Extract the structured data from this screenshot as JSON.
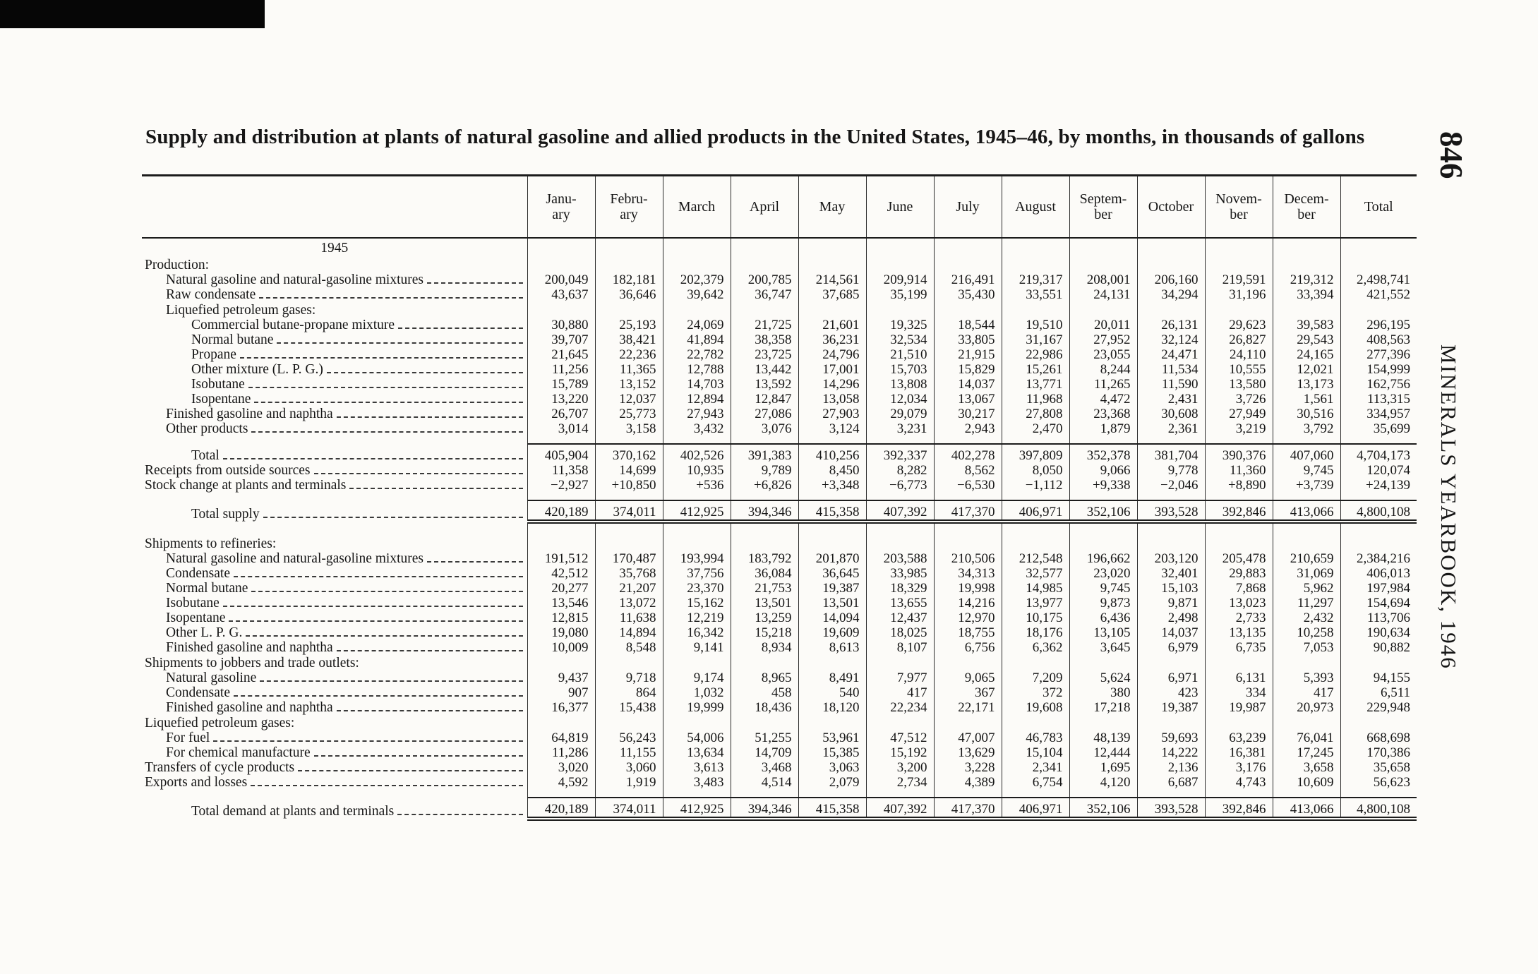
{
  "page": {
    "title": "Supply and distribution at plants of natural gasoline and allied products in the United States, 1945–46, by months, in thousands of gallons",
    "page_number": "846",
    "side_text": "MINERALS YEARBOOK, 1946"
  },
  "table": {
    "columns": [
      "Janu-\nary",
      "Febru-\nary",
      "March",
      "April",
      "May",
      "June",
      "July",
      "August",
      "Septem-\nber",
      "October",
      "Novem-\nber",
      "Decem-\nber",
      "Total"
    ],
    "rows": [
      {
        "type": "year",
        "label": "1945"
      },
      {
        "type": "section",
        "label": "Production:",
        "indent": 0
      },
      {
        "type": "data",
        "label": "Natural gasoline and natural-gasoline mixtures",
        "indent": 1,
        "values": [
          "200,049",
          "182,181",
          "202,379",
          "200,785",
          "214,561",
          "209,914",
          "216,491",
          "219,317",
          "208,001",
          "206,160",
          "219,591",
          "219,312",
          "2,498,741"
        ]
      },
      {
        "type": "data",
        "label": "Raw condensate",
        "indent": 1,
        "values": [
          "43,637",
          "36,646",
          "39,642",
          "36,747",
          "37,685",
          "35,199",
          "35,430",
          "33,551",
          "24,131",
          "34,294",
          "31,196",
          "33,394",
          "421,552"
        ]
      },
      {
        "type": "section",
        "label": "Liquefied petroleum gases:",
        "indent": 1
      },
      {
        "type": "data",
        "label": "Commercial butane-propane mixture",
        "indent": 2,
        "values": [
          "30,880",
          "25,193",
          "24,069",
          "21,725",
          "21,601",
          "19,325",
          "18,544",
          "19,510",
          "20,011",
          "26,131",
          "29,623",
          "39,583",
          "296,195"
        ]
      },
      {
        "type": "data",
        "label": "Normal butane",
        "indent": 2,
        "values": [
          "39,707",
          "38,421",
          "41,894",
          "38,358",
          "36,231",
          "32,534",
          "33,805",
          "31,167",
          "27,952",
          "32,124",
          "26,827",
          "29,543",
          "408,563"
        ]
      },
      {
        "type": "data",
        "label": "Propane",
        "indent": 2,
        "values": [
          "21,645",
          "22,236",
          "22,782",
          "23,725",
          "24,796",
          "21,510",
          "21,915",
          "22,986",
          "23,055",
          "24,471",
          "24,110",
          "24,165",
          "277,396"
        ]
      },
      {
        "type": "data",
        "label": "Other mixture (L. P. G.)",
        "indent": 2,
        "values": [
          "11,256",
          "11,365",
          "12,788",
          "13,442",
          "17,001",
          "15,703",
          "15,829",
          "15,261",
          "8,244",
          "11,534",
          "10,555",
          "12,021",
          "154,999"
        ]
      },
      {
        "type": "data",
        "label": "Isobutane",
        "indent": 2,
        "values": [
          "15,789",
          "13,152",
          "14,703",
          "13,592",
          "14,296",
          "13,808",
          "14,037",
          "13,771",
          "11,265",
          "11,590",
          "13,580",
          "13,173",
          "162,756"
        ]
      },
      {
        "type": "data",
        "label": "Isopentane",
        "indent": 2,
        "values": [
          "13,220",
          "12,037",
          "12,894",
          "12,847",
          "13,058",
          "12,034",
          "13,067",
          "11,968",
          "4,472",
          "2,431",
          "3,726",
          "1,561",
          "113,315"
        ]
      },
      {
        "type": "data",
        "label": "Finished gasoline and naphtha",
        "indent": 1,
        "values": [
          "26,707",
          "25,773",
          "27,943",
          "27,086",
          "27,903",
          "29,079",
          "30,217",
          "27,808",
          "23,368",
          "30,608",
          "27,949",
          "30,516",
          "334,957"
        ]
      },
      {
        "type": "data",
        "label": "Other products",
        "indent": 1,
        "values": [
          "3,014",
          "3,158",
          "3,432",
          "3,076",
          "3,124",
          "3,231",
          "2,943",
          "2,470",
          "1,879",
          "2,361",
          "3,219",
          "3,792",
          "35,699"
        ]
      },
      {
        "type": "spacer"
      },
      {
        "type": "total",
        "label": "Total",
        "indent": 2,
        "values": [
          "405,904",
          "370,162",
          "402,526",
          "391,383",
          "410,256",
          "392,337",
          "402,278",
          "397,809",
          "352,378",
          "381,704",
          "390,376",
          "407,060",
          "4,704,173"
        ]
      },
      {
        "type": "data",
        "label": "Receipts from outside sources",
        "indent": 0,
        "values": [
          "11,358",
          "14,699",
          "10,935",
          "9,789",
          "8,450",
          "8,282",
          "8,562",
          "8,050",
          "9,066",
          "9,778",
          "11,360",
          "9,745",
          "120,074"
        ]
      },
      {
        "type": "data",
        "label": "Stock change at plants and terminals",
        "indent": 0,
        "values": [
          "−2,927",
          "+10,850",
          "+536",
          "+6,826",
          "+3,348",
          "−6,773",
          "−6,530",
          "−1,112",
          "+9,338",
          "−2,046",
          "+8,890",
          "+3,739",
          "+24,139"
        ]
      },
      {
        "type": "spacer"
      },
      {
        "type": "grand",
        "label": "Total supply",
        "indent": 2,
        "values": [
          "420,189",
          "374,011",
          "412,925",
          "394,346",
          "415,358",
          "407,392",
          "417,370",
          "406,971",
          "352,106",
          "393,528",
          "392,846",
          "413,066",
          "4,800,108"
        ]
      },
      {
        "type": "spacer",
        "tall": true
      },
      {
        "type": "section",
        "label": "Shipments to refineries:",
        "indent": 0
      },
      {
        "type": "data",
        "label": "Natural gasoline and natural-gasoline mixtures",
        "indent": 1,
        "values": [
          "191,512",
          "170,487",
          "193,994",
          "183,792",
          "201,870",
          "203,588",
          "210,506",
          "212,548",
          "196,662",
          "203,120",
          "205,478",
          "210,659",
          "2,384,216"
        ]
      },
      {
        "type": "data",
        "label": "Condensate",
        "indent": 1,
        "values": [
          "42,512",
          "35,768",
          "37,756",
          "36,084",
          "36,645",
          "33,985",
          "34,313",
          "32,577",
          "23,020",
          "32,401",
          "29,883",
          "31,069",
          "406,013"
        ]
      },
      {
        "type": "data",
        "label": "Normal butane",
        "indent": 1,
        "values": [
          "20,277",
          "21,207",
          "23,370",
          "21,753",
          "19,387",
          "18,329",
          "19,998",
          "14,985",
          "9,745",
          "15,103",
          "7,868",
          "5,962",
          "197,984"
        ]
      },
      {
        "type": "data",
        "label": "Isobutane",
        "indent": 1,
        "values": [
          "13,546",
          "13,072",
          "15,162",
          "13,501",
          "13,501",
          "13,655",
          "14,216",
          "13,977",
          "9,873",
          "9,871",
          "13,023",
          "11,297",
          "154,694"
        ]
      },
      {
        "type": "data",
        "label": "Isopentane",
        "indent": 1,
        "values": [
          "12,815",
          "11,638",
          "12,219",
          "13,259",
          "14,094",
          "12,437",
          "12,970",
          "10,175",
          "6,436",
          "2,498",
          "2,733",
          "2,432",
          "113,706"
        ]
      },
      {
        "type": "data",
        "label": "Other L. P. G.",
        "indent": 1,
        "values": [
          "19,080",
          "14,894",
          "16,342",
          "15,218",
          "19,609",
          "18,025",
          "18,755",
          "18,176",
          "13,105",
          "14,037",
          "13,135",
          "10,258",
          "190,634"
        ]
      },
      {
        "type": "data",
        "label": "Finished gasoline and naphtha",
        "indent": 1,
        "values": [
          "10,009",
          "8,548",
          "9,141",
          "8,934",
          "8,613",
          "8,107",
          "6,756",
          "6,362",
          "3,645",
          "6,979",
          "6,735",
          "7,053",
          "90,882"
        ]
      },
      {
        "type": "section",
        "label": "Shipments to jobbers and trade outlets:",
        "indent": 0
      },
      {
        "type": "data",
        "label": "Natural gasoline",
        "indent": 1,
        "values": [
          "9,437",
          "9,718",
          "9,174",
          "8,965",
          "8,491",
          "7,977",
          "9,065",
          "7,209",
          "5,624",
          "6,971",
          "6,131",
          "5,393",
          "94,155"
        ]
      },
      {
        "type": "data",
        "label": "Condensate",
        "indent": 1,
        "values": [
          "907",
          "864",
          "1,032",
          "458",
          "540",
          "417",
          "367",
          "372",
          "380",
          "423",
          "334",
          "417",
          "6,511"
        ]
      },
      {
        "type": "data",
        "label": "Finished gasoline and naphtha",
        "indent": 1,
        "values": [
          "16,377",
          "15,438",
          "19,999",
          "18,436",
          "18,120",
          "22,234",
          "22,171",
          "19,608",
          "17,218",
          "19,387",
          "19,987",
          "20,973",
          "229,948"
        ]
      },
      {
        "type": "section",
        "label": "Liquefied petroleum gases:",
        "indent": 0
      },
      {
        "type": "data",
        "label": "For fuel",
        "indent": 1,
        "values": [
          "64,819",
          "56,243",
          "54,006",
          "51,255",
          "53,961",
          "47,512",
          "47,007",
          "46,783",
          "48,139",
          "59,693",
          "63,239",
          "76,041",
          "668,698"
        ]
      },
      {
        "type": "data",
        "label": "For chemical manufacture",
        "indent": 1,
        "values": [
          "11,286",
          "11,155",
          "13,634",
          "14,709",
          "15,385",
          "15,192",
          "13,629",
          "15,104",
          "12,444",
          "14,222",
          "16,381",
          "17,245",
          "170,386"
        ]
      },
      {
        "type": "data",
        "label": "Transfers of cycle products",
        "indent": 0,
        "values": [
          "3,020",
          "3,060",
          "3,613",
          "3,468",
          "3,063",
          "3,200",
          "3,228",
          "2,341",
          "1,695",
          "2,136",
          "3,176",
          "3,658",
          "35,658"
        ]
      },
      {
        "type": "data",
        "label": "Exports and losses",
        "indent": 0,
        "values": [
          "4,592",
          "1,919",
          "3,483",
          "4,514",
          "2,079",
          "2,734",
          "4,389",
          "6,754",
          "4,120",
          "6,687",
          "4,743",
          "10,609",
          "56,623"
        ]
      },
      {
        "type": "spacer"
      },
      {
        "type": "grand",
        "label": "Total demand at plants and terminals",
        "indent": 2,
        "values": [
          "420,189",
          "374,011",
          "412,925",
          "394,346",
          "415,358",
          "407,392",
          "417,370",
          "406,971",
          "352,106",
          "393,528",
          "392,846",
          "413,066",
          "4,800,108"
        ]
      }
    ]
  }
}
